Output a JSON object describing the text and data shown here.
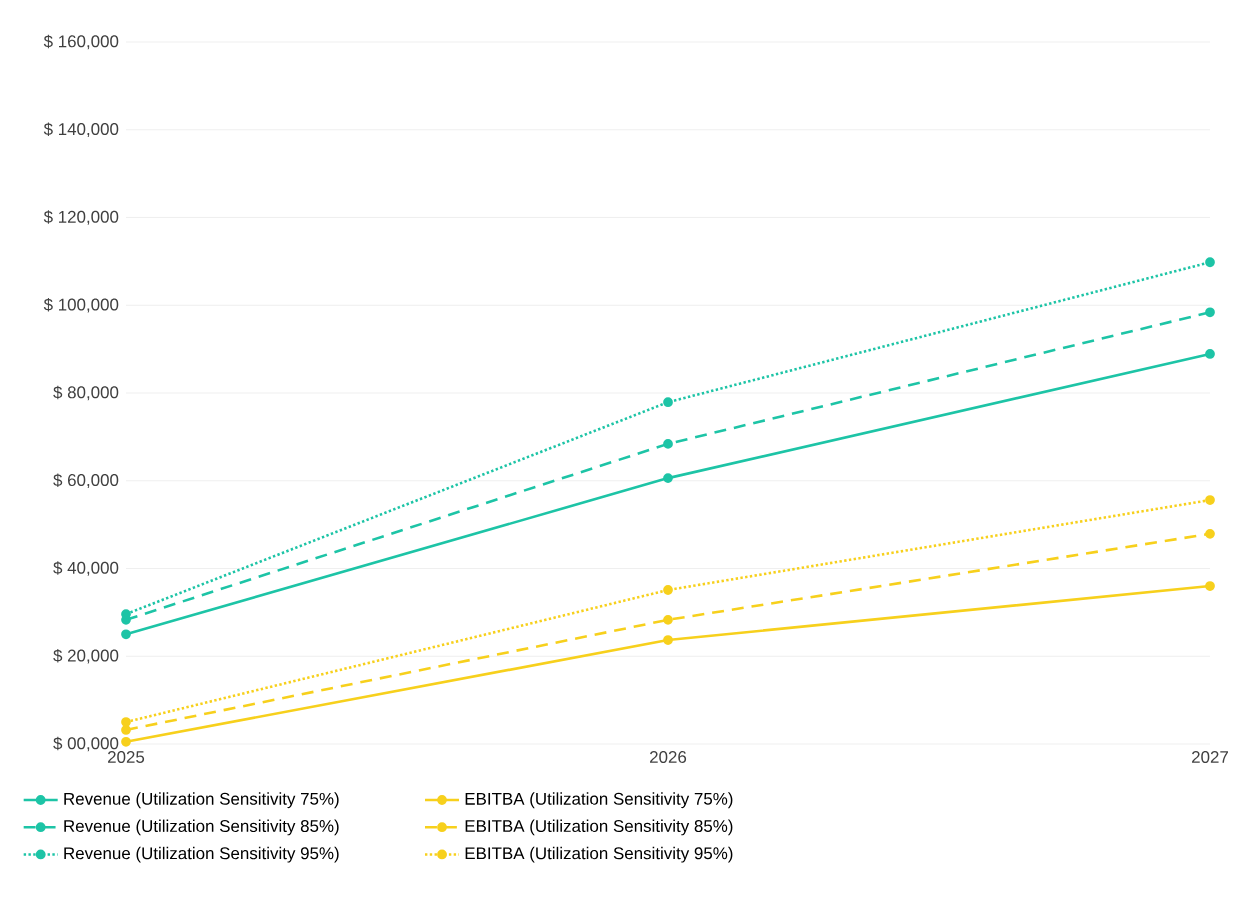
{
  "chart_data": {
    "type": "line",
    "categories": [
      "2025",
      "2026",
      "2027"
    ],
    "ylim": [
      0,
      160000
    ],
    "yticks": [
      {
        "value": 0,
        "label": "$ 00,000"
      },
      {
        "value": 20000,
        "label": "$ 20,000"
      },
      {
        "value": 40000,
        "label": "$ 40,000"
      },
      {
        "value": 60000,
        "label": "$ 60,000"
      },
      {
        "value": 80000,
        "label": "$ 80,000"
      },
      {
        "value": 100000,
        "label": "$ 100,000"
      },
      {
        "value": 120000,
        "label": "$ 120,000"
      },
      {
        "value": 140000,
        "label": "$ 140,000"
      },
      {
        "value": 160000,
        "label": "$ 160,000"
      }
    ],
    "grid": "y",
    "legend": "bottom left",
    "marker": "circle",
    "series": [
      {
        "name": "Revenue (Utilization Sensitivity 75%)",
        "color": "#1dc4a6",
        "line_style": "solid",
        "values": [
          25000,
          60600,
          88900
        ]
      },
      {
        "name": "Revenue (Utilization Sensitivity 85%)",
        "color": "#1dc4a6",
        "line_style": "dashed",
        "values": [
          28300,
          68400,
          98400
        ]
      },
      {
        "name": "Revenue (Utilization Sensitivity 95%)",
        "color": "#1dc4a6",
        "line_style": "dotted",
        "values": [
          29600,
          77900,
          109800
        ]
      },
      {
        "name": "EBITBA (Utilization Sensitivity 75%)",
        "color": "#f7d01c",
        "line_style": "solid",
        "values": [
          500,
          23700,
          36000
        ]
      },
      {
        "name": "EBITBA (Utilization Sensitivity 85%)",
        "color": "#f7d01c",
        "line_style": "dashed",
        "values": [
          3200,
          28300,
          47900
        ]
      },
      {
        "name": "EBITBA (Utilization Sensitivity 95%)",
        "color": "#f7d01c",
        "line_style": "dotted",
        "values": [
          5000,
          35100,
          55600
        ]
      }
    ]
  }
}
